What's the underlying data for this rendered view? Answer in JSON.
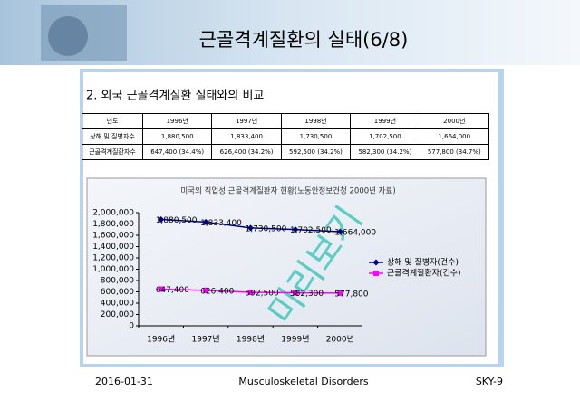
{
  "header": {
    "title": "근골격계질환의 실태(6/8)"
  },
  "subtitle": "2. 외국 근골격계질환 실태와의 비교",
  "table": {
    "rows": [
      [
        "년도",
        "1996년",
        "1997년",
        "1998년",
        "1999년",
        "2000년"
      ],
      [
        "상해 및 질병자수",
        "1,880,500",
        "1,833,400",
        "1,730,500",
        "1,702,500",
        "1,664,000"
      ],
      [
        "근골격계질환자수",
        "647,400 (34.4%)",
        "626,400 (34.2%)",
        "592,500 (34.2%)",
        "582,300 (34.2%)",
        "577,800 (34.7%)"
      ]
    ]
  },
  "chart_data": {
    "type": "line",
    "title": "미국의 직업성 근골격계질환자 현황(노동안정보건청 2000년 자료)",
    "categories": [
      "1996년",
      "1997년",
      "1998년",
      "1999년",
      "2000년"
    ],
    "series": [
      {
        "name": "상해 및 질병자(건수)",
        "color": "#000080",
        "marker": "diamond",
        "values": [
          1880500,
          1833400,
          1730500,
          1702500,
          1664000
        ],
        "value_labels": [
          "1,880,500",
          "1,833,400",
          "1,730,500",
          "1,702,500",
          "1,664,000"
        ]
      },
      {
        "name": "근골격계질환자(건수)",
        "color": "#ff00ff",
        "marker": "square",
        "values": [
          647400,
          626400,
          592500,
          582300,
          577800
        ],
        "value_labels": [
          "647,400",
          "626,400",
          "592,500",
          "582,300",
          "577,800"
        ]
      }
    ],
    "ylim": [
      0,
      2000000
    ],
    "yticks": [
      0,
      {
        "value": 200000,
        "label": "200,000"
      },
      {
        "value": 400000,
        "label": "400,000"
      },
      {
        "value": 600000,
        "label": "600,000"
      },
      {
        "value": 800000,
        "label": "800,000"
      },
      {
        "value": 1000000,
        "label": "1,000,000"
      },
      {
        "value": 1200000,
        "label": "1,200,000"
      },
      {
        "value": 1400000,
        "label": "1,400,000"
      },
      {
        "value": 1600000,
        "label": "1,600,000"
      },
      {
        "value": 1800000,
        "label": "1,800,000"
      },
      {
        "value": 2000000,
        "label": "2,000,000"
      }
    ],
    "legend": "right"
  },
  "watermark": "미리보기",
  "footer": {
    "date": "2016-01-31",
    "topic": "Musculoskeletal Disorders",
    "page": "SKY-9"
  }
}
